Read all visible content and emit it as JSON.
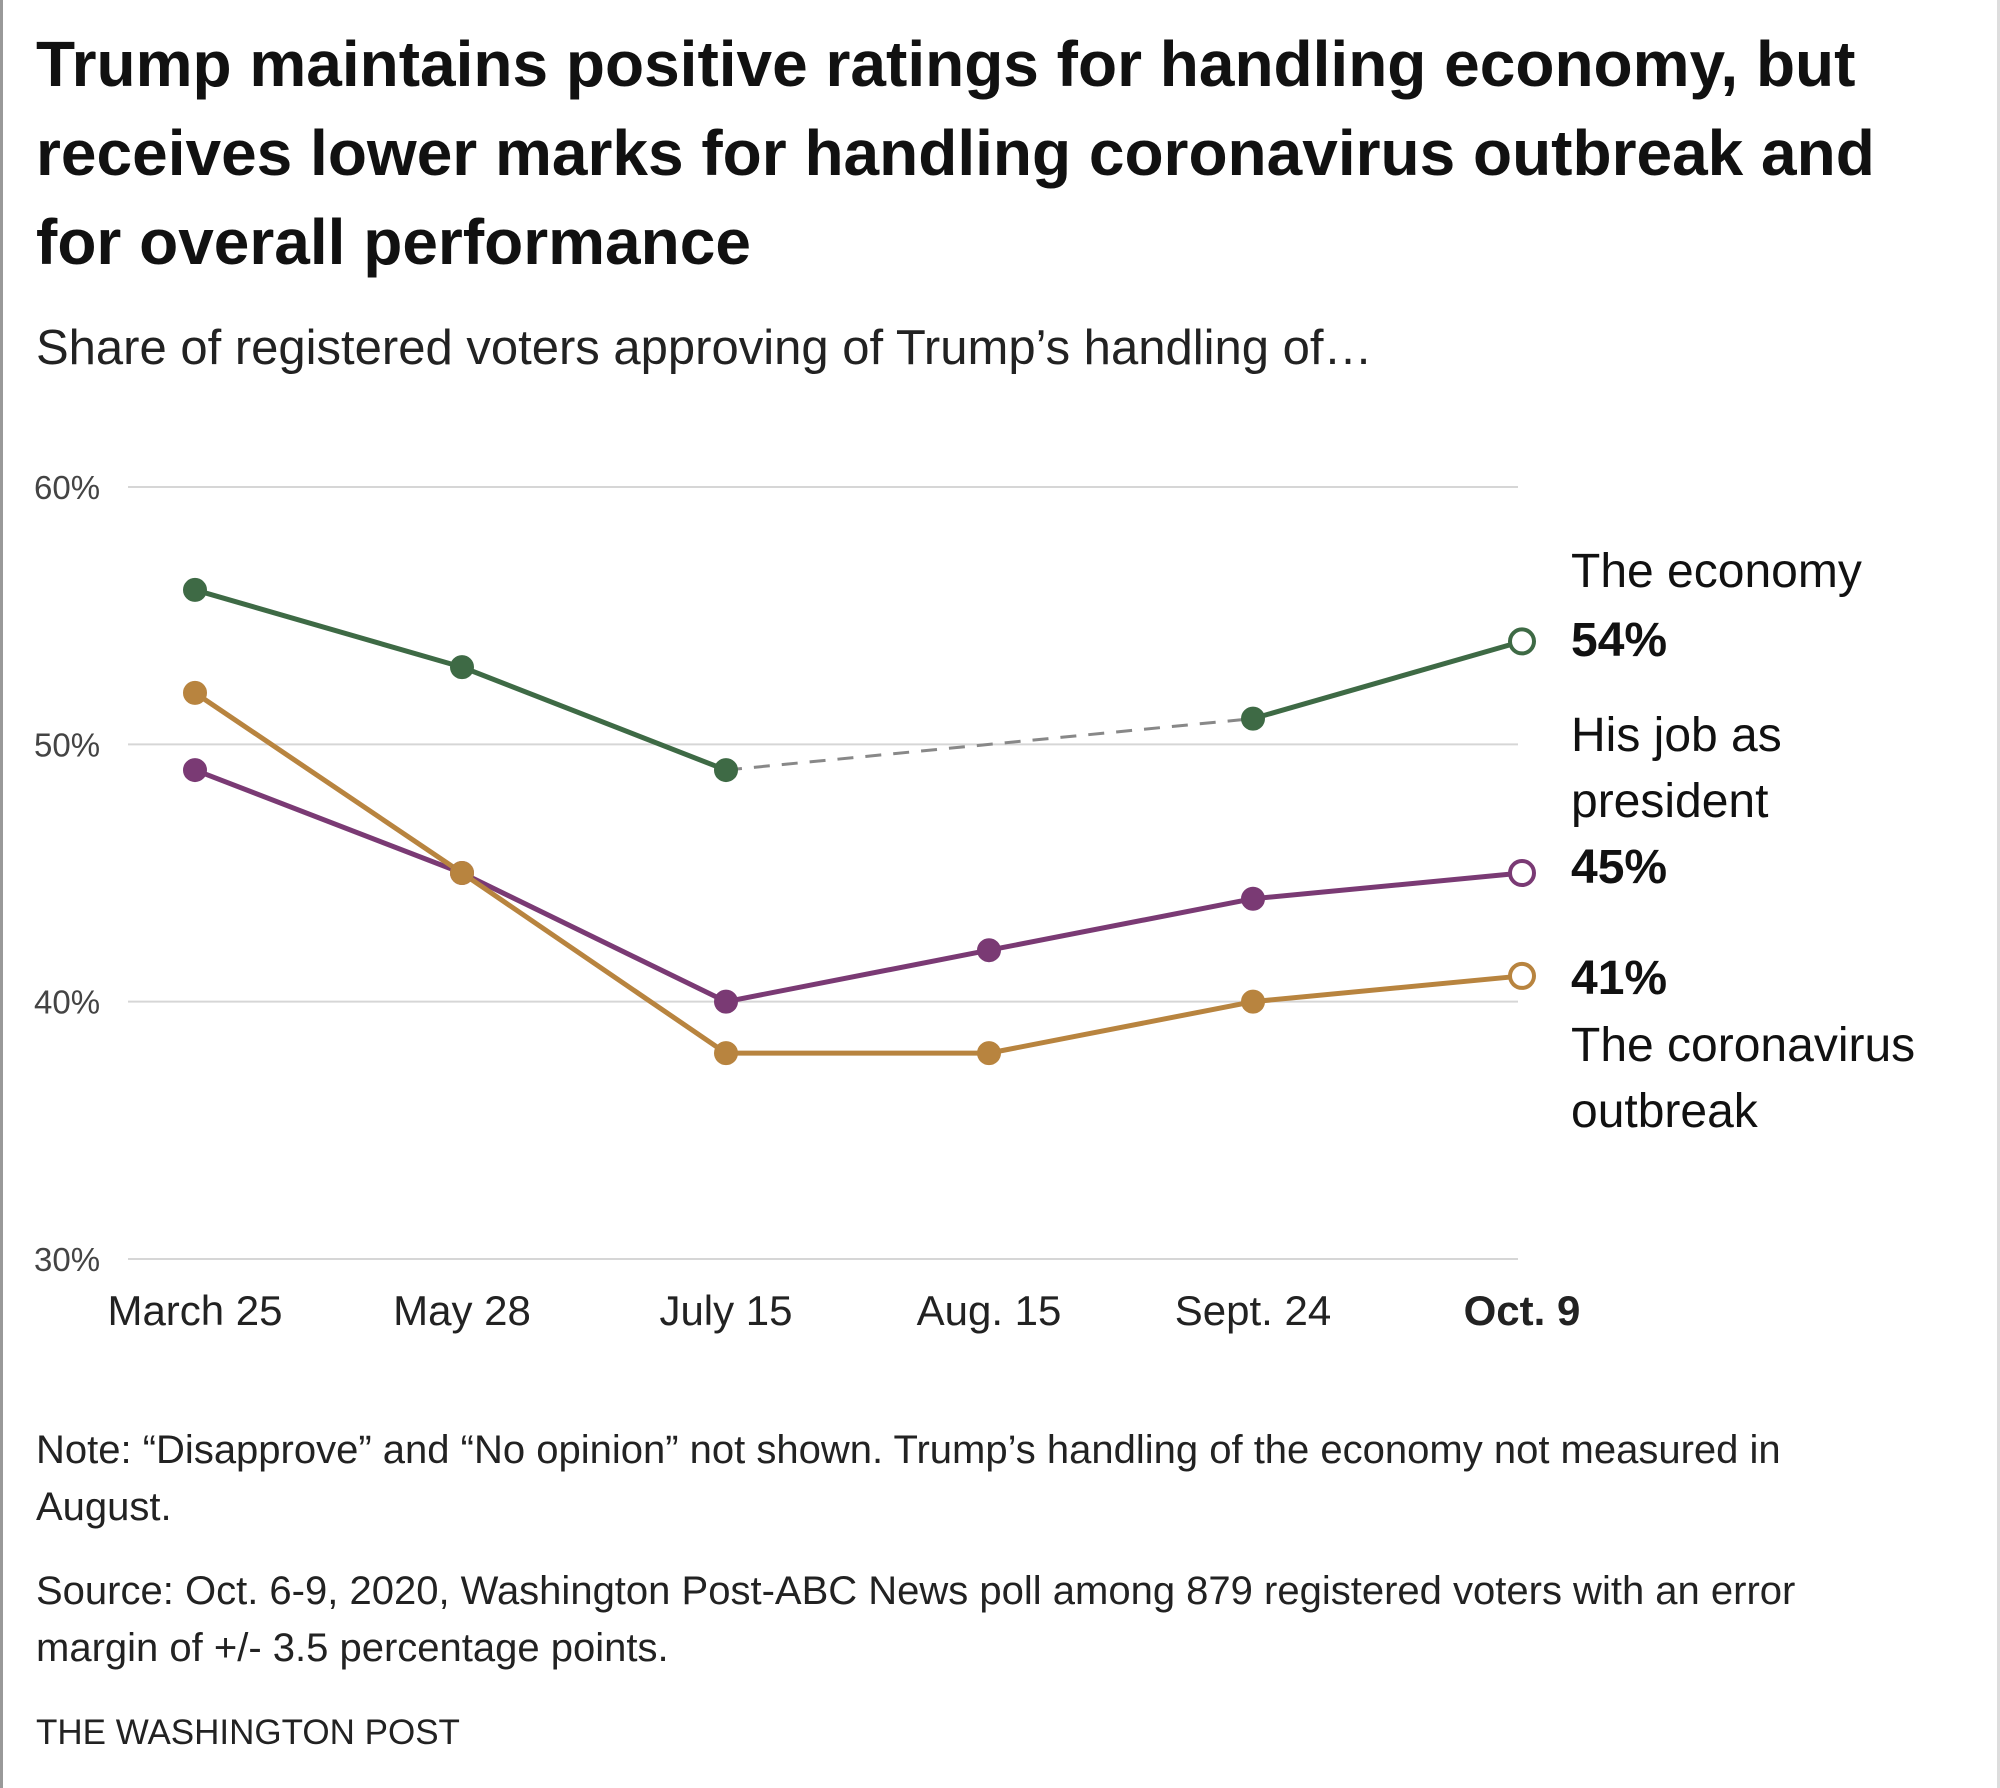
{
  "title": "Trump maintains positive ratings for handling economy, but receives lower marks for handling coronavirus outbreak and for overall performance",
  "subtitle": "Share of registered voters approving of Trump’s handling of…",
  "note": "Note: “Disapprove” and “No opinion” not shown. Trump’s handling of the economy not measured in August.",
  "source": "Source: Oct. 6-9, 2020, Washington Post-ABC News poll among 879 registered voters with an error margin of +/- 3.5 percentage points.",
  "brand": "THE WASHINGTON POST",
  "chart_data": {
    "type": "line",
    "categories": [
      "March 25",
      "May 28",
      "July 15",
      "Aug. 15",
      "Sept. 24",
      "Oct. 9"
    ],
    "ylim": [
      30,
      60
    ],
    "yticks": [
      "60%",
      "50%",
      "40%",
      "30%"
    ],
    "grid": true,
    "series": [
      {
        "name": "The economy",
        "label_lines": [
          "The economy"
        ],
        "end_label": "54%",
        "color": "#3e6a45",
        "values": [
          56,
          53,
          49,
          null,
          51,
          54
        ],
        "gap_dashed": true
      },
      {
        "name": "His job as president",
        "label_lines": [
          "His job as",
          "president"
        ],
        "end_label": "45%",
        "color": "#7a3a74",
        "values": [
          49,
          45,
          40,
          42,
          44,
          45
        ]
      },
      {
        "name": "The coronavirus outbreak",
        "label_lines": [
          "The coronavirus",
          "outbreak"
        ],
        "end_label": "41%",
        "color": "#b8843f",
        "values": [
          52,
          45,
          38,
          38,
          40,
          41
        ]
      }
    ]
  }
}
